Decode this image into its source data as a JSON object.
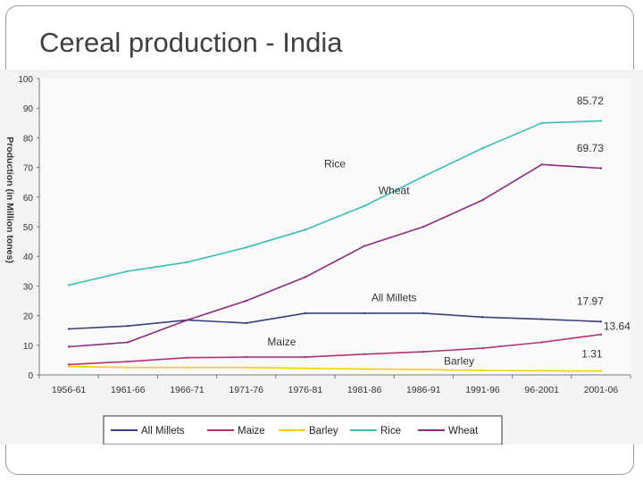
{
  "slide": {
    "title": "Cereal production - India"
  },
  "chart_data": {
    "type": "line",
    "title": "",
    "xlabel": "",
    "ylabel": "Production (in Million tones)",
    "ylim": [
      0,
      100
    ],
    "yticks": [
      "0",
      "10",
      "20",
      "30",
      "40",
      "50",
      "60",
      "70",
      "80",
      "90",
      "100"
    ],
    "categories": [
      "1956-61",
      "1961-66",
      "1966-71",
      "1971-76",
      "1976-81",
      "1981-86",
      "1986-91",
      "1991-96",
      "96-2001",
      "2001-06"
    ],
    "series": [
      {
        "name": "All Millets",
        "color": "#3b3f7a",
        "values": [
          15.5,
          16.5,
          18.5,
          17.5,
          20.8,
          20.8,
          20.8,
          19.5,
          18.8,
          17.97
        ]
      },
      {
        "name": "Maize",
        "color": "#b3337a",
        "values": [
          3.5,
          4.5,
          5.8,
          6.0,
          6.0,
          7.0,
          7.8,
          9.0,
          11.0,
          13.64
        ]
      },
      {
        "name": "Barley",
        "color": "#f0d200",
        "values": [
          2.8,
          2.5,
          2.5,
          2.5,
          2.2,
          2.0,
          1.8,
          1.5,
          1.4,
          1.31
        ]
      },
      {
        "name": "Rice",
        "color": "#3cbcb4",
        "values": [
          30.3,
          35.0,
          38.0,
          43.0,
          49.0,
          57.0,
          67.0,
          76.5,
          85.0,
          85.72
        ]
      },
      {
        "name": "Wheat",
        "color": "#8b2a7e",
        "values": [
          9.5,
          11.0,
          18.5,
          25.0,
          33.0,
          43.5,
          50.0,
          59.0,
          71.0,
          69.73
        ]
      }
    ],
    "annotations": [
      {
        "text": "Rice",
        "series": "Rice"
      },
      {
        "text": "Wheat",
        "series": "Wheat"
      },
      {
        "text": "All Millets",
        "series": "All Millets"
      },
      {
        "text": "Maize",
        "series": "Maize"
      },
      {
        "text": "Barley",
        "series": "Barley"
      }
    ],
    "end_labels": [
      {
        "text": "85.72",
        "series": "Rice"
      },
      {
        "text": "69.73",
        "series": "Wheat"
      },
      {
        "text": "17.97",
        "series": "All Millets"
      },
      {
        "text": "13.64",
        "series": "Maize"
      },
      {
        "text": "1.31",
        "series": "Barley"
      }
    ],
    "legend_position": "bottom"
  }
}
